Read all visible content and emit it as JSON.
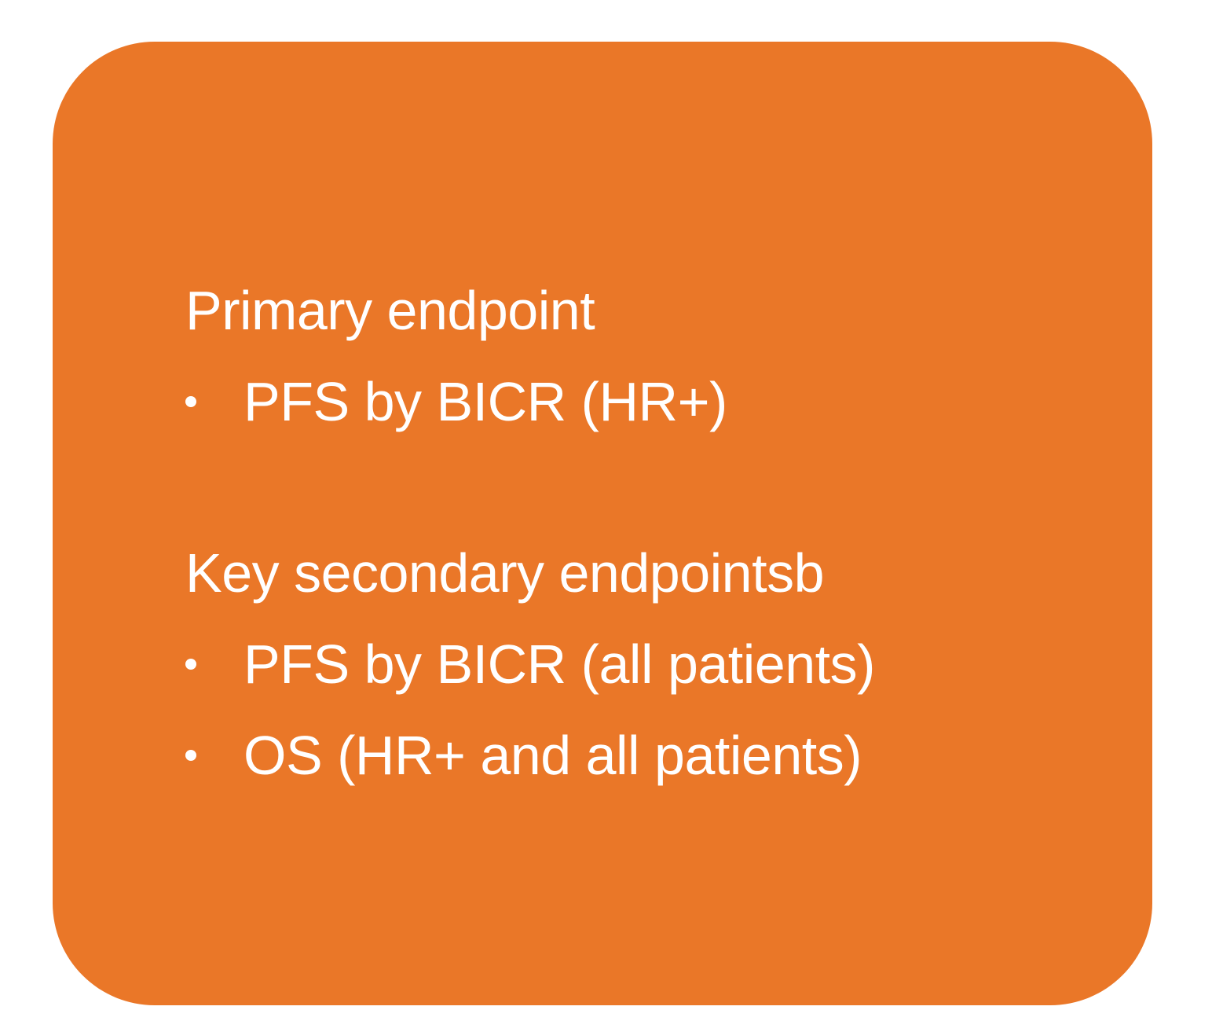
{
  "colors": {
    "card_background": "#EA7728",
    "text": "#FFFFFF",
    "page_background": "#FFFFFF"
  },
  "sections": [
    {
      "heading": "Primary endpoint",
      "items": [
        "PFS by BICR (HR+)"
      ]
    },
    {
      "heading": "Key secondary endpointsb",
      "items": [
        "PFS by BICR (all patients)",
        "OS (HR+ and all patients)"
      ]
    }
  ]
}
